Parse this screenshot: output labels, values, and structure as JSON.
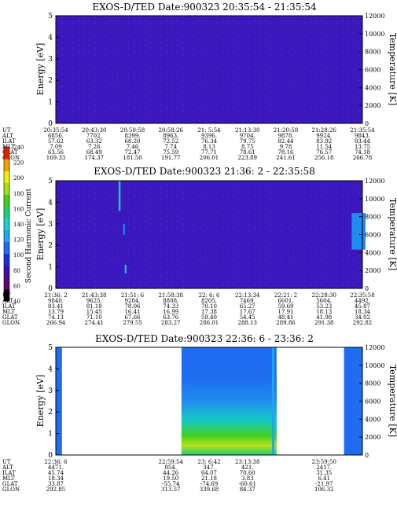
{
  "chart_data": {
    "type": "heatmap",
    "panels": [
      {
        "title": "EXOS-D/TED   Date:900323  20:35:54 - 21:35:54",
        "ylabel": "Energy [eV]",
        "y2label": "Temperature [K]",
        "ylim": [
          0,
          5
        ],
        "yticks": [
          "0",
          "1",
          "2",
          "3",
          "4",
          "5"
        ],
        "y2lim": [
          0,
          12000
        ],
        "y2ticks": [
          "0",
          "2000",
          "4000",
          "6000",
          "8000",
          "10000",
          "12000"
        ],
        "rows": [
          {
            "label": "UT",
            "values": [
              "20:35:54",
              "20:43:30",
              "20:50:58",
              "20:58:26",
              "21: 5:54",
              "21:13:30",
              "21:20:58",
              "21:28:26",
              "21:35:54"
            ]
          },
          {
            "label": "ALT",
            "values": [
              "6856.",
              "7702.",
              "8399.",
              "8963.",
              "9396.",
              "9704.",
              "9878.",
              "9924.",
              "9843."
            ]
          },
          {
            "label": "ILAT",
            "values": [
              "57.62",
              "63.32",
              "68.20",
              "72.52",
              "76.34",
              "79.75",
              "82.44",
              "83.92",
              "83.44"
            ]
          },
          {
            "label": "MLT",
            "values": [
              "7.09",
              "7.26",
              "7.46",
              "7.74",
              "8.13",
              "8.75",
              "9.78",
              "11.54",
              "13.75"
            ]
          },
          {
            "label": "GLAT",
            "values": [
              "63.56",
              "68.49",
              "72.47",
              "75.59",
              "77.71",
              "78.61",
              "78.16",
              "76.57",
              "74.18"
            ]
          },
          {
            "label": "GLON",
            "values": [
              "169.33",
              "174.37",
              "181.50",
              "191.77",
              "206.01",
              "223.89",
              "241.61",
              "256.18",
              "266.78"
            ]
          }
        ],
        "features": [],
        "data_gaps": []
      },
      {
        "title": "EXOS-D/TED   Date:900323  21:36: 2 - 22:35:58",
        "ylabel": "Energy [eV]",
        "y2label": "Temperature [K]",
        "ylim": [
          0,
          5
        ],
        "yticks": [
          "0",
          "1",
          "2",
          "3",
          "4",
          "5"
        ],
        "y2lim": [
          0,
          12000
        ],
        "y2ticks": [
          "0",
          "2000",
          "4000",
          "6000",
          "8000",
          "10000",
          "12000"
        ],
        "rows": [
          {
            "label": "UT",
            "values": [
              "21:36: 2",
              "21:43:38",
              "21:51: 6",
              "21:58:38",
              "22: 6: 6",
              "22:13:34",
              "22:21: 2",
              "22:28:30",
              "22:35:58"
            ]
          },
          {
            "label": "ALT",
            "values": [
              "9840.",
              "9625.",
              "9284.",
              "8808.",
              "8205.",
              "7469.",
              "6601.",
              "5604.",
              "4492."
            ]
          },
          {
            "label": "ILAT",
            "values": [
              "83.41",
              "81.18",
              "78.06",
              "74.33",
              "70.10",
              "65.27",
              "59.69",
              "53.23",
              "45.87"
            ]
          },
          {
            "label": "MLT",
            "values": [
              "13.79",
              "15.45",
              "16.41",
              "16.99",
              "17.38",
              "17.67",
              "17.91",
              "18.13",
              "18.34"
            ]
          },
          {
            "label": "GLAT",
            "values": [
              "74.13",
              "71.10",
              "67.66",
              "63.76",
              "59.40",
              "54.45",
              "48.41",
              "41.98",
              "34.02"
            ]
          },
          {
            "label": "GLON",
            "values": [
              "266.94",
              "274.41",
              "279.55",
              "283.27",
              "286.01",
              "288.13",
              "289.86",
              "291.38",
              "292.82"
            ]
          }
        ],
        "features": [
          {
            "t": 0.205,
            "w": 0.006,
            "e0": 3.6,
            "e1": 5.0,
            "level": "high"
          },
          {
            "t": 0.22,
            "w": 0.004,
            "e0": 2.5,
            "e1": 3.0,
            "level": "mid"
          },
          {
            "t": 0.225,
            "w": 0.004,
            "e0": 0.7,
            "e1": 1.1,
            "level": "high"
          },
          {
            "t": 0.965,
            "w": 0.045,
            "e0": 1.8,
            "e1": 3.5,
            "level": "mid"
          }
        ],
        "data_gaps": []
      },
      {
        "title": "EXOS-D/TED   Date:900323  22:36: 6 - 23:36: 2",
        "ylabel": "Energy [eV]",
        "y2label": "Temperature [K]",
        "ylim": [
          0,
          5
        ],
        "yticks": [
          "0",
          "1",
          "2",
          "3",
          "4",
          "5"
        ],
        "y2lim": [
          0,
          12000
        ],
        "y2ticks": [
          "0",
          "2000",
          "4000",
          "6000",
          "8000",
          "10000",
          "12000"
        ],
        "rows": [
          {
            "label": "UT",
            "values": [
              "22:36: 6",
              "",
              "",
              "22:59:54",
              "23: 6:42",
              "23:13:38",
              "",
              "23:59:50",
              ""
            ]
          },
          {
            "label": "ALT",
            "values": [
              "4471.",
              "",
              "",
              "854.",
              "347.",
              "421.",
              "",
              "2417.",
              ""
            ]
          },
          {
            "label": "ILAT",
            "values": [
              "45.74",
              "",
              "",
              "44.26",
              "64.07",
              "70.60",
              "",
              "31.35",
              ""
            ]
          },
          {
            "label": "MLT",
            "values": [
              "18.34",
              "",
              "",
              "19.50",
              "21.18",
              "3.83",
              "",
              "6.41",
              ""
            ]
          },
          {
            "label": "GLAT",
            "values": [
              "33.87",
              "",
              "",
              "-55.74",
              "-74.69",
              "-60.61",
              "",
              "-21.97",
              ""
            ]
          },
          {
            "label": "GLON",
            "values": [
              "292.85",
              "",
              "",
              "313.57",
              "339.68",
              "84.37",
              "",
              "106.32",
              ""
            ]
          }
        ],
        "features": [],
        "data_gaps": [
          [
            0.02,
            0.41
          ],
          [
            0.72,
            0.94
          ]
        ]
      }
    ],
    "colorbar": {
      "label": "Second Harmonic Current",
      "ticks": [
        "40",
        "60",
        "80",
        "100",
        "120",
        "140",
        "160",
        "180",
        "200",
        "220",
        "240"
      ],
      "colors": [
        "#000000",
        "#5a0a6e",
        "#3a0fb0",
        "#1a2ee0",
        "#1f6cf0",
        "#1fa6f0",
        "#18d0d0",
        "#1dcf7a",
        "#40d21e",
        "#a8e01a",
        "#f0f010",
        "#f0a000",
        "#e02000"
      ]
    }
  }
}
